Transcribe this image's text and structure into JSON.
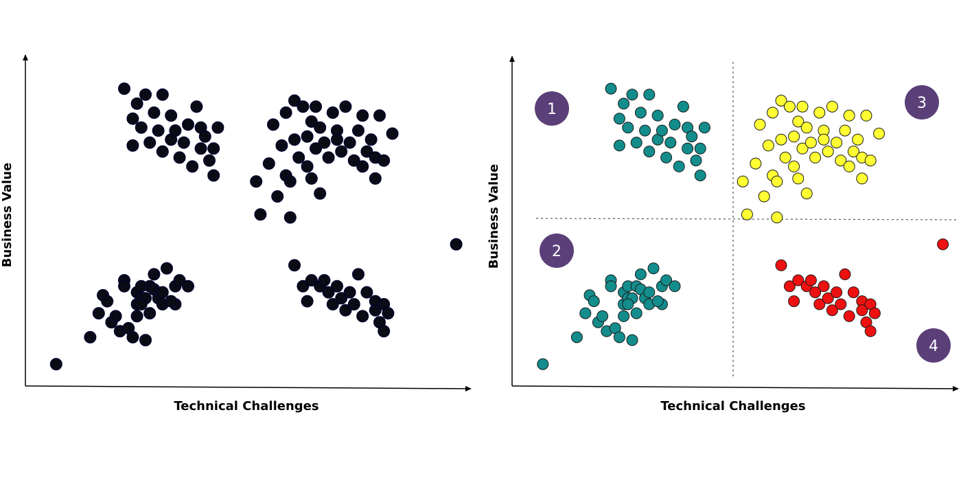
{
  "colors": {
    "black": "#0b0b16",
    "teal": "#138c8c",
    "yellow": "#ffff33",
    "red": "#ee1111",
    "badge": "#5b3f78",
    "axis": "#000000"
  },
  "chart_data": [
    {
      "type": "scatter",
      "xlabel": "Technical Challenges",
      "ylabel": "Business Value",
      "xlim": [
        0,
        100
      ],
      "ylim": [
        0,
        100
      ],
      "grid": false,
      "series": [
        {
          "color": "black",
          "points": [
            [
              4,
              5
            ],
            [
              12,
              14
            ],
            [
              15,
              28
            ],
            [
              14,
              22
            ],
            [
              17,
              19
            ],
            [
              16,
              26
            ],
            [
              18,
              21
            ],
            [
              19,
              16
            ],
            [
              20,
              33
            ],
            [
              21,
              17
            ],
            [
              20,
              31
            ],
            [
              22,
              14
            ],
            [
              23,
              29
            ],
            [
              23,
              25
            ],
            [
              23,
              21
            ],
            [
              24,
              27
            ],
            [
              24,
              31
            ],
            [
              25,
              27
            ],
            [
              25,
              13
            ],
            [
              24,
              25
            ],
            [
              26,
              31
            ],
            [
              26,
              22
            ],
            [
              27,
              30
            ],
            [
              28,
              27
            ],
            [
              29,
              29
            ],
            [
              29,
              25
            ],
            [
              27,
              35
            ],
            [
              30,
              37
            ],
            [
              32,
              25
            ],
            [
              32,
              31
            ],
            [
              33,
              33
            ],
            [
              31,
              26
            ],
            [
              35,
              31
            ],
            [
              20,
              97
            ],
            [
              22,
              87
            ],
            [
              22,
              78
            ],
            [
              23,
              92
            ],
            [
              24,
              84
            ],
            [
              25,
              95
            ],
            [
              26,
              79
            ],
            [
              27,
              89
            ],
            [
              28,
              83
            ],
            [
              29,
              76
            ],
            [
              29,
              95
            ],
            [
              31,
              80
            ],
            [
              31,
              88
            ],
            [
              32,
              83
            ],
            [
              33,
              74
            ],
            [
              34,
              79
            ],
            [
              35,
              85
            ],
            [
              36,
              71
            ],
            [
              37,
              91
            ],
            [
              38,
              77
            ],
            [
              38,
              84
            ],
            [
              39,
              81
            ],
            [
              40,
              73
            ],
            [
              41,
              68
            ],
            [
              42,
              84
            ],
            [
              41,
              77
            ],
            [
              51,
              66
            ],
            [
              52,
              55
            ],
            [
              54,
              72
            ],
            [
              55,
              85
            ],
            [
              56,
              61
            ],
            [
              57,
              78
            ],
            [
              58,
              68
            ],
            [
              58,
              89
            ],
            [
              59,
              66
            ],
            [
              60,
              80
            ],
            [
              60,
              93
            ],
            [
              61,
              74
            ],
            [
              62,
              91
            ],
            [
              63,
              81
            ],
            [
              63,
              71
            ],
            [
              64,
              86
            ],
            [
              64,
              67
            ],
            [
              65,
              91
            ],
            [
              65,
              77
            ],
            [
              66,
              84
            ],
            [
              66,
              62
            ],
            [
              67,
              79
            ],
            [
              68,
              74
            ],
            [
              69,
              89
            ],
            [
              70,
              83
            ],
            [
              70,
              80
            ],
            [
              71,
              76
            ],
            [
              72,
              91
            ],
            [
              73,
              79
            ],
            [
              74,
              73
            ],
            [
              75,
              83
            ],
            [
              76,
              71
            ],
            [
              76,
              88
            ],
            [
              77,
              76
            ],
            [
              78,
              80
            ],
            [
              79,
              74
            ],
            [
              79,
              67
            ],
            [
              80,
              88
            ],
            [
              81,
              73
            ],
            [
              83,
              82
            ],
            [
              59,
              54
            ],
            [
              98,
              45
            ],
            [
              60,
              38
            ],
            [
              62,
              31
            ],
            [
              63,
              26
            ],
            [
              64,
              33
            ],
            [
              66,
              31
            ],
            [
              67,
              33
            ],
            [
              68,
              29
            ],
            [
              69,
              25
            ],
            [
              70,
              31
            ],
            [
              71,
              27
            ],
            [
              72,
              23
            ],
            [
              73,
              29
            ],
            [
              74,
              25
            ],
            [
              75,
              35
            ],
            [
              76,
              21
            ],
            [
              77,
              29
            ],
            [
              79,
              26
            ],
            [
              79,
              23
            ],
            [
              80,
              19
            ],
            [
              81,
              25
            ],
            [
              81,
              16
            ],
            [
              82,
              22
            ]
          ]
        }
      ]
    },
    {
      "type": "scatter",
      "xlabel": "Technical Challenges",
      "ylabel": "Business Value",
      "xlim": [
        0,
        100
      ],
      "ylim": [
        0,
        100
      ],
      "grid": false,
      "quadrant_labels": [
        "1",
        "2",
        "3",
        "4"
      ],
      "series": [
        {
          "color": "teal",
          "points": [
            [
              4,
              5
            ],
            [
              12,
              14
            ],
            [
              15,
              28
            ],
            [
              14,
              22
            ],
            [
              17,
              19
            ],
            [
              16,
              26
            ],
            [
              18,
              21
            ],
            [
              19,
              16
            ],
            [
              20,
              33
            ],
            [
              21,
              17
            ],
            [
              20,
              31
            ],
            [
              22,
              14
            ],
            [
              23,
              29
            ],
            [
              23,
              25
            ],
            [
              23,
              21
            ],
            [
              24,
              27
            ],
            [
              24,
              31
            ],
            [
              25,
              27
            ],
            [
              25,
              13
            ],
            [
              24,
              25
            ],
            [
              26,
              31
            ],
            [
              26,
              22
            ],
            [
              27,
              30
            ],
            [
              28,
              27
            ],
            [
              29,
              29
            ],
            [
              29,
              25
            ],
            [
              27,
              35
            ],
            [
              30,
              37
            ],
            [
              32,
              25
            ],
            [
              32,
              31
            ],
            [
              33,
              33
            ],
            [
              31,
              26
            ],
            [
              35,
              31
            ],
            [
              20,
              97
            ],
            [
              22,
              87
            ],
            [
              22,
              78
            ],
            [
              23,
              92
            ],
            [
              24,
              84
            ],
            [
              25,
              95
            ],
            [
              26,
              79
            ],
            [
              27,
              89
            ],
            [
              28,
              83
            ],
            [
              29,
              76
            ],
            [
              29,
              95
            ],
            [
              31,
              80
            ],
            [
              31,
              88
            ],
            [
              32,
              83
            ],
            [
              33,
              74
            ],
            [
              34,
              79
            ],
            [
              35,
              85
            ],
            [
              36,
              71
            ],
            [
              37,
              91
            ],
            [
              38,
              77
            ],
            [
              38,
              84
            ],
            [
              39,
              81
            ],
            [
              40,
              73
            ],
            [
              41,
              68
            ],
            [
              42,
              84
            ],
            [
              41,
              77
            ]
          ]
        },
        {
          "color": "yellow",
          "points": [
            [
              51,
              66
            ],
            [
              52,
              55
            ],
            [
              54,
              72
            ],
            [
              55,
              85
            ],
            [
              56,
              61
            ],
            [
              57,
              78
            ],
            [
              58,
              68
            ],
            [
              58,
              89
            ],
            [
              59,
              66
            ],
            [
              60,
              80
            ],
            [
              60,
              93
            ],
            [
              61,
              74
            ],
            [
              62,
              91
            ],
            [
              63,
              81
            ],
            [
              63,
              71
            ],
            [
              64,
              86
            ],
            [
              64,
              67
            ],
            [
              65,
              91
            ],
            [
              65,
              77
            ],
            [
              66,
              84
            ],
            [
              66,
              62
            ],
            [
              67,
              79
            ],
            [
              68,
              74
            ],
            [
              69,
              89
            ],
            [
              70,
              83
            ],
            [
              70,
              80
            ],
            [
              71,
              76
            ],
            [
              72,
              91
            ],
            [
              73,
              79
            ],
            [
              74,
              73
            ],
            [
              75,
              83
            ],
            [
              76,
              71
            ],
            [
              76,
              88
            ],
            [
              77,
              76
            ],
            [
              78,
              80
            ],
            [
              79,
              74
            ],
            [
              79,
              67
            ],
            [
              80,
              88
            ],
            [
              81,
              73
            ],
            [
              83,
              82
            ],
            [
              59,
              54
            ]
          ]
        },
        {
          "color": "red",
          "points": [
            [
              98,
              45
            ],
            [
              60,
              38
            ],
            [
              62,
              31
            ],
            [
              63,
              26
            ],
            [
              64,
              33
            ],
            [
              66,
              31
            ],
            [
              67,
              33
            ],
            [
              68,
              29
            ],
            [
              69,
              25
            ],
            [
              70,
              31
            ],
            [
              71,
              27
            ],
            [
              72,
              23
            ],
            [
              73,
              29
            ],
            [
              74,
              25
            ],
            [
              75,
              35
            ],
            [
              76,
              21
            ],
            [
              77,
              29
            ],
            [
              79,
              26
            ],
            [
              79,
              23
            ],
            [
              80,
              19
            ],
            [
              81,
              25
            ],
            [
              81,
              16
            ],
            [
              82,
              22
            ]
          ]
        }
      ]
    }
  ]
}
